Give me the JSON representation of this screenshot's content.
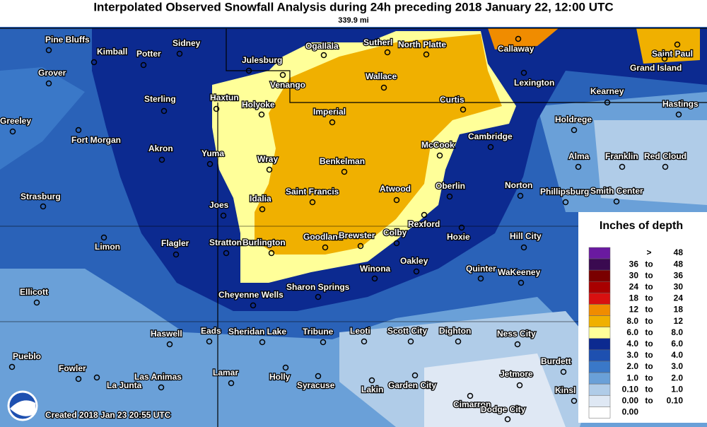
{
  "title": "Interpolated Observed Snowfall Analysis during 24h preceding 2018 January 22, 12:00 UTC",
  "scale": "339.9 mi",
  "created": "Created 2018 Jan 23 20:55 UTC",
  "cities": [
    "Pine Bluffs",
    "Kimball",
    "Potter",
    "Sidney",
    "Julesburg",
    "Ogallala",
    "Sutherl",
    "North Platte",
    "Callaway",
    "Saint Paul",
    "Grand Island",
    "Grover",
    "Venango",
    "Wallace",
    "Lexington",
    "Kearney",
    "Haxtun",
    "Holyoke",
    "Sterling",
    "Imperial",
    "Curtis",
    "Hastings",
    "Greeley",
    "Holdrege",
    "Fort Morgan",
    "Cambridge",
    "Akron",
    "Yuma",
    "McCook",
    "Wray",
    "Benkelman",
    "Alma",
    "Franklin",
    "Red Cloud",
    "Strasburg",
    "Idalia",
    "Saint Francis",
    "Atwood",
    "Oberlin",
    "Norton",
    "Phillipsburg",
    "Smith Center",
    "Joes",
    "Rexford",
    "Goodland",
    "Brewster",
    "Colby",
    "Hoxie",
    "Hill City",
    "Limon",
    "Flagler",
    "Stratton",
    "Burlington",
    "Winona",
    "Oakley",
    "Quinter",
    "WaKeeney",
    "Ellicott",
    "Sharon Springs",
    "Cheyenne Wells",
    "Haswell",
    "Eads",
    "Sheridan Lake",
    "Tribune",
    "Leoti",
    "Scott City",
    "Dighton",
    "Ness City",
    "Pueblo",
    "Fowler",
    "Burdett",
    "Las Animas",
    "Lamar",
    "Holly",
    "Jetmore",
    "Kinsl",
    "La Junta",
    "Syracuse",
    "Lakin",
    "Garden City",
    "Cimarron",
    "Dodge City"
  ],
  "legend": {
    "title": "Inches of depth",
    "rows": [
      {
        "parts": [
          ">",
          "48"
        ],
        "color": "#6a1aa0"
      },
      {
        "parts": [
          "36",
          "to",
          "48"
        ],
        "color": "#3a0a50"
      },
      {
        "parts": [
          "30",
          "to",
          "36"
        ],
        "color": "#7a0000"
      },
      {
        "parts": [
          "24",
          "to",
          "30"
        ],
        "color": "#a80000"
      },
      {
        "parts": [
          "18",
          "to",
          "24"
        ],
        "color": "#d81010"
      },
      {
        "parts": [
          "12",
          "to",
          "18"
        ],
        "color": "#f08c00"
      },
      {
        "parts": [
          "8.0",
          "to",
          "12"
        ],
        "color": "#f0b000"
      },
      {
        "parts": [
          "6.0",
          "to",
          "8.0"
        ],
        "color": "#ffff99"
      },
      {
        "parts": [
          "4.0",
          "to",
          "6.0"
        ],
        "color": "#0c2a90"
      },
      {
        "parts": [
          "3.0",
          "to",
          "4.0"
        ],
        "color": "#1e50b0"
      },
      {
        "parts": [
          "2.0",
          "to",
          "3.0"
        ],
        "color": "#3a78c8"
      },
      {
        "parts": [
          "1.0",
          "to",
          "2.0"
        ],
        "color": "#6aa0d8"
      },
      {
        "parts": [
          "0.10",
          "to",
          "1.0"
        ],
        "color": "#b0cce8"
      },
      {
        "parts": [
          "0.00",
          "to",
          "0.10"
        ],
        "color": "#dfe8f4"
      },
      {
        "parts": [
          "0.00"
        ],
        "color": "#ffffff"
      }
    ]
  }
}
